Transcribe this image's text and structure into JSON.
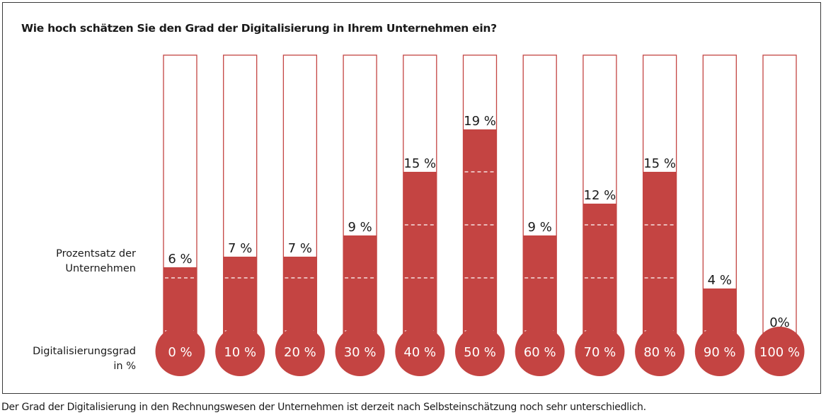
{
  "chart_data": {
    "type": "bar",
    "style": "thermometer",
    "title": "Wie hoch schätzen Sie den Grad der Digitalisierung in Ihrem Unternehmen ein?",
    "ylabel": "Prozentsatz der Unternehmen",
    "xlabel": "Digitalisierungsgrad in %",
    "categories": [
      "0 %",
      "10 %",
      "20 %",
      "30 %",
      "40 %",
      "50 %",
      "60 %",
      "70 %",
      "80 %",
      "90 %",
      "100 %"
    ],
    "values": [
      6,
      7,
      7,
      9,
      15,
      19,
      9,
      12,
      15,
      4,
      0
    ],
    "data_labels": [
      "6 %",
      "7 %",
      "7 %",
      "9 %",
      "15 %",
      "19 %",
      "9 %",
      "12 %",
      "15 %",
      "4 %",
      "0%"
    ],
    "ylim": [
      0,
      26
    ],
    "gridlines": [
      0,
      5,
      10,
      15
    ],
    "colors": {
      "fill": "#c44442",
      "outline": "#c44442",
      "grid": "#ffffff",
      "bulb_text": "#ffffff"
    }
  },
  "labels": {
    "percent_line1": "Prozentsatz der",
    "percent_line2": "Unternehmen",
    "degree_line1": "Digitalisierungsgrad",
    "degree_line2": "in %"
  },
  "caption": "Der Grad der Digitalisierung in den Rechnungswesen der Unternehmen ist derzeit nach Selbsteinschätzung noch sehr unterschiedlich."
}
